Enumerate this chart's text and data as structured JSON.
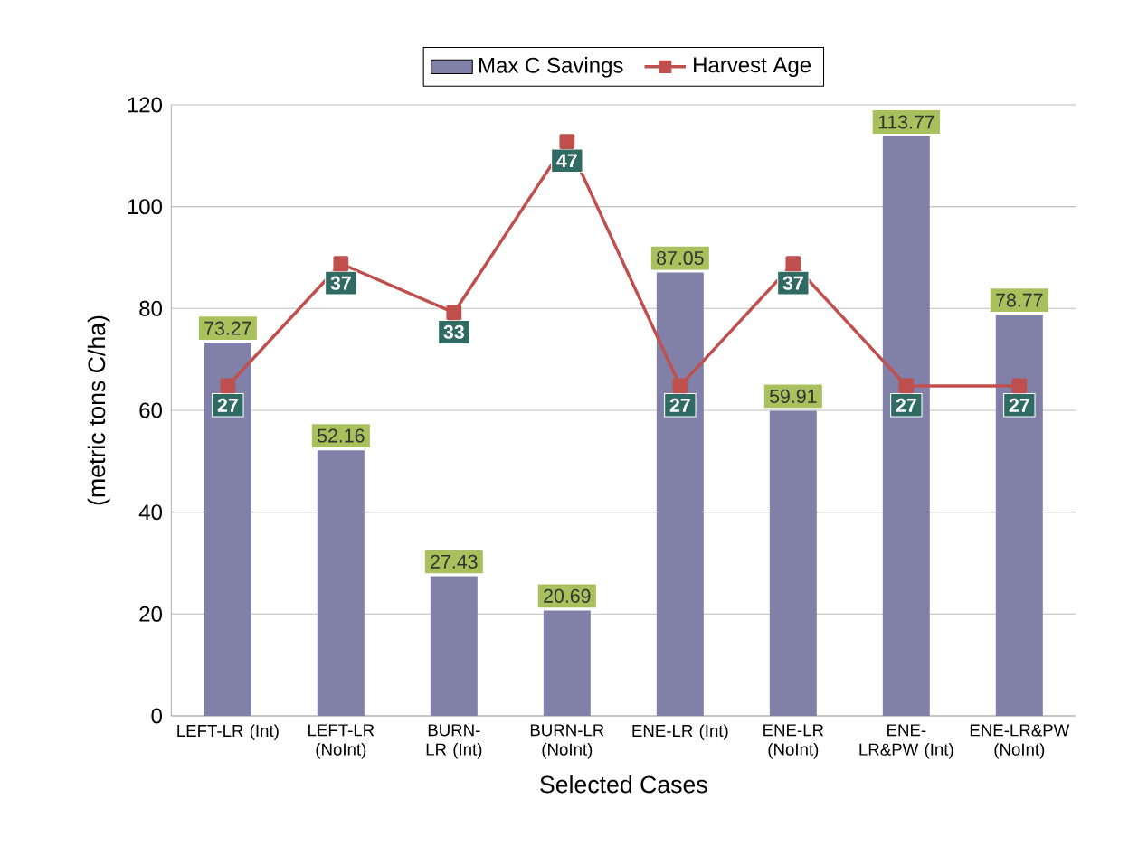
{
  "chart_data": {
    "type": "bar",
    "xlabel": "Selected Cases",
    "ylabel": "(metric tons C/ha)",
    "categories": [
      "LEFT-LR (Int)",
      "LEFT-LR (NoInt)",
      "BURN-LR (Int)",
      "BURN-LR (NoInt)",
      "ENE-LR (Int)",
      "ENE-LR (NoInt)",
      "ENE-LR&PW (Int)",
      "ENE-LR&PW (NoInt)"
    ],
    "series": [
      {
        "name": "Max C Savings",
        "color": "#8080a8",
        "values": [
          73.27,
          52.16,
          27.43,
          20.69,
          87.05,
          59.91,
          113.77,
          78.77
        ]
      },
      {
        "name": "Harvest Age",
        "type": "line",
        "axis": "y2",
        "color": "#c0504d",
        "marker": "square",
        "values": [
          27,
          37,
          33,
          47,
          27,
          37,
          27,
          27
        ]
      }
    ],
    "ylim": [
      0,
      120
    ],
    "yticks": [
      0,
      20,
      40,
      60,
      80,
      100,
      120
    ],
    "y2lim": [
      0,
      50
    ],
    "grid": "y",
    "legend": "top",
    "data_labels": true
  }
}
